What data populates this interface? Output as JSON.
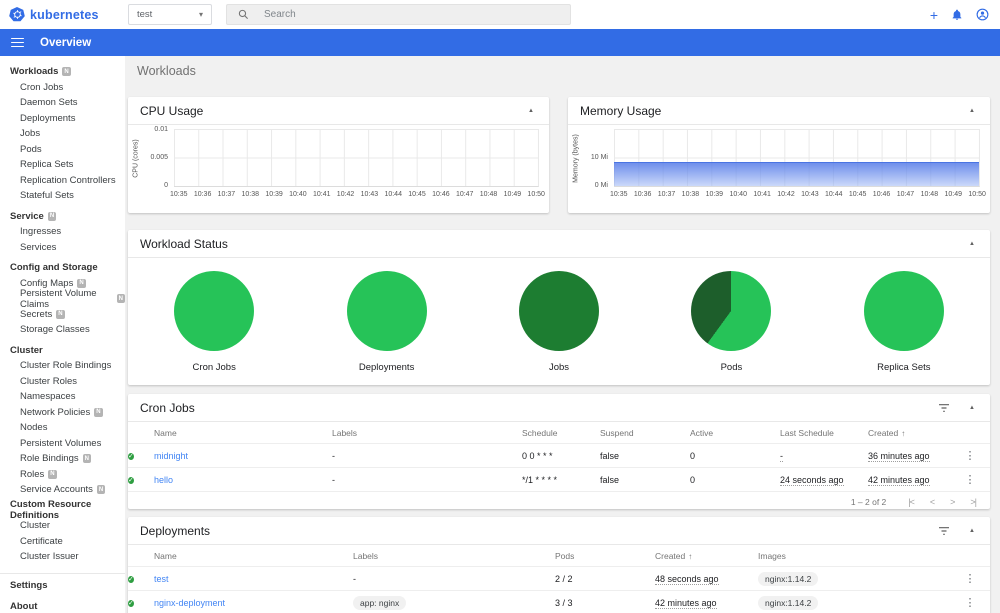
{
  "colors": {
    "brand_blue": "#326ce5",
    "link_blue": "#4285f4",
    "bright_green": "#26c358",
    "dark_green_jobs": "#1d7d31",
    "dark_green_pods": "#1d5e2b",
    "check_green": "#2e9e41",
    "memory_area_blue": "#567ce8"
  },
  "icons": {
    "collapse_glyph": "▲",
    "kebab_glyph": "⋮",
    "sort_asc_glyph": "↑",
    "dropdown_caret_glyph": "▾",
    "plus_glyph": "+",
    "check_glyph": "✓",
    "page_first": "|<",
    "page_prev": "<",
    "page_next": ">",
    "page_last": ">|"
  },
  "header": {
    "logo_text": "kubernetes",
    "namespace": {
      "value": "test"
    },
    "search": {
      "placeholder": "Search"
    }
  },
  "toolbar": {
    "title": "Overview"
  },
  "sidebar": {
    "sections": [
      {
        "label": "Workloads",
        "badge": "N",
        "items": [
          {
            "label": "Cron Jobs"
          },
          {
            "label": "Daemon Sets"
          },
          {
            "label": "Deployments"
          },
          {
            "label": "Jobs"
          },
          {
            "label": "Pods"
          },
          {
            "label": "Replica Sets"
          },
          {
            "label": "Replication Controllers"
          },
          {
            "label": "Stateful Sets"
          }
        ]
      },
      {
        "label": "Service",
        "badge": "N",
        "items": [
          {
            "label": "Ingresses"
          },
          {
            "label": "Services"
          }
        ]
      },
      {
        "label": "Config and Storage",
        "items": [
          {
            "label": "Config Maps",
            "badge": "N"
          },
          {
            "label": "Persistent Volume Claims",
            "badge": "N"
          },
          {
            "label": "Secrets",
            "badge": "N"
          },
          {
            "label": "Storage Classes"
          }
        ]
      },
      {
        "label": "Cluster",
        "items": [
          {
            "label": "Cluster Role Bindings"
          },
          {
            "label": "Cluster Roles"
          },
          {
            "label": "Namespaces"
          },
          {
            "label": "Network Policies",
            "badge": "N"
          },
          {
            "label": "Nodes"
          },
          {
            "label": "Persistent Volumes"
          },
          {
            "label": "Role Bindings",
            "badge": "N"
          },
          {
            "label": "Roles",
            "badge": "N"
          },
          {
            "label": "Service Accounts",
            "badge": "N"
          }
        ]
      },
      {
        "label": "Custom Resource Definitions",
        "items": [
          {
            "label": "Cluster"
          },
          {
            "label": "Certificate"
          },
          {
            "label": "Cluster Issuer"
          }
        ]
      }
    ],
    "footer": [
      {
        "label": "Settings"
      },
      {
        "label": "About"
      }
    ]
  },
  "main": {
    "page_title": "Workloads",
    "cron_jobs": {
      "title": "Cron Jobs",
      "columns": [
        "Name",
        "Labels",
        "Schedule",
        "Suspend",
        "Active",
        "Last Schedule",
        "Created"
      ],
      "sorted_by": "Created",
      "rows": [
        {
          "name": "midnight",
          "labels": "-",
          "schedule": "0 0 * * *",
          "suspend": "false",
          "active": "0",
          "last_schedule": "-",
          "created": "36 minutes ago"
        },
        {
          "name": "hello",
          "labels": "-",
          "schedule": "*/1 * * * *",
          "suspend": "false",
          "active": "0",
          "last_schedule": "24 seconds ago",
          "created": "42 minutes ago"
        }
      ],
      "pagination": {
        "label": "1 – 2 of 2"
      }
    },
    "deployments": {
      "title": "Deployments",
      "columns": [
        "Name",
        "Labels",
        "Pods",
        "Created",
        "Images"
      ],
      "sorted_by": "Created",
      "rows": [
        {
          "name": "test",
          "labels": "-",
          "pods": "2 / 2",
          "created": "48 seconds ago",
          "image": "nginx:1.14.2"
        },
        {
          "name": "nginx-deployment",
          "labels_chip": "app: nginx",
          "pods": "3 / 3",
          "created": "42 minutes ago",
          "image": "nginx:1.14.2"
        }
      ]
    }
  },
  "chart_data": [
    {
      "id": "cpu-usage",
      "type": "area",
      "title": "CPU Usage",
      "ylabel": "CPU (cores)",
      "yticks": [
        "0.01",
        "0.005",
        "0"
      ],
      "ylim": [
        0,
        0.01
      ],
      "grid": true,
      "x": [
        "10:35",
        "10:36",
        "10:37",
        "10:38",
        "10:39",
        "10:40",
        "10:41",
        "10:42",
        "10:43",
        "10:44",
        "10:45",
        "10:46",
        "10:47",
        "10:48",
        "10:49",
        "10:50"
      ],
      "series": []
    },
    {
      "id": "memory-usage",
      "type": "area",
      "title": "Memory Usage",
      "ylabel": "Memory (bytes)",
      "yticks": [
        "10 Mi",
        "0 Mi"
      ],
      "ylim": [
        0,
        20
      ],
      "grid": true,
      "x": [
        "10:35",
        "10:36",
        "10:37",
        "10:38",
        "10:39",
        "10:40",
        "10:41",
        "10:42",
        "10:43",
        "10:44",
        "10:45",
        "10:46",
        "10:47",
        "10:48",
        "10:49",
        "10:50"
      ],
      "series": [
        {
          "name": "memory",
          "unit": "Mi",
          "values": [
            8,
            8,
            8,
            8,
            8,
            8,
            8,
            8,
            8,
            8,
            8,
            8,
            8,
            8,
            8,
            8
          ]
        }
      ]
    },
    {
      "id": "workload-status",
      "type": "pie",
      "title": "Workload Status",
      "charts": [
        {
          "label": "Cron Jobs",
          "slices": [
            {
              "value": 100,
              "color": "#26c358"
            }
          ]
        },
        {
          "label": "Deployments",
          "slices": [
            {
              "value": 100,
              "color": "#26c358"
            }
          ]
        },
        {
          "label": "Jobs",
          "slices": [
            {
              "value": 100,
              "color": "#1d7d31"
            }
          ]
        },
        {
          "label": "Pods",
          "slices": [
            {
              "value": 60,
              "color": "#26c358"
            },
            {
              "value": 40,
              "color": "#1d5e2b"
            }
          ]
        },
        {
          "label": "Replica Sets",
          "slices": [
            {
              "value": 100,
              "color": "#26c358"
            }
          ]
        }
      ]
    }
  ]
}
